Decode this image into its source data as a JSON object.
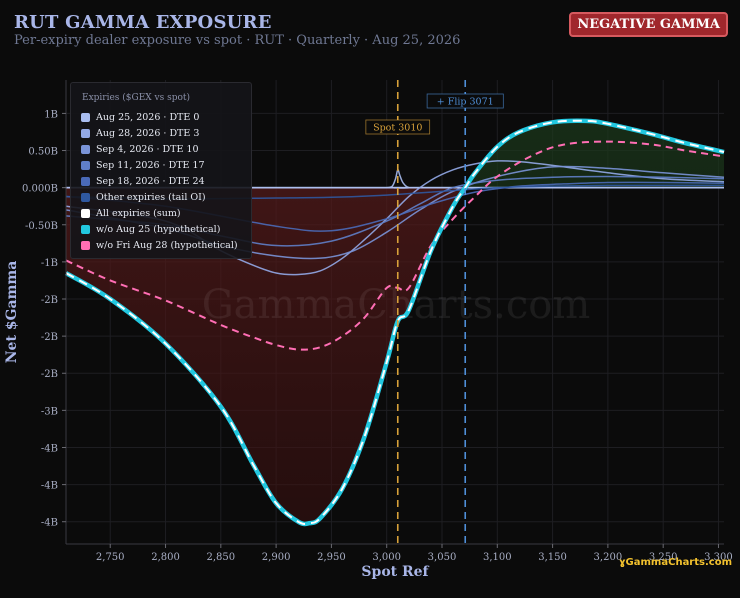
{
  "header": {
    "title": "RUT GAMMA EXPOSURE",
    "subtitle": "Per-expiry dealer exposure vs spot · RUT · Quarterly · Aug 25, 2026",
    "badge": "NEGATIVE GAMMA",
    "brand": "ɣGammaCharts.com"
  },
  "watermark": "GammaCharts.com",
  "chart_data": {
    "type": "line",
    "xlabel": "Spot Ref",
    "ylabel": "Net $Gamma",
    "xlim": [
      2710,
      3305
    ],
    "ylim": [
      -4.8,
      1.45
    ],
    "x_ticks": [
      2750,
      2800,
      2850,
      2900,
      2950,
      3000,
      3050,
      3100,
      3150,
      3200,
      3250,
      3300
    ],
    "x_tick_labels": [
      "2,750",
      "2,800",
      "2,850",
      "2,900",
      "2,950",
      "3,000",
      "3,050",
      "3,100",
      "3,150",
      "3,200",
      "3,250",
      "3,300"
    ],
    "y_ticks": [
      1,
      0.5,
      0,
      -0.5,
      -1,
      -1.5,
      -2,
      -2.5,
      -3,
      -3.5,
      -4,
      -4.5
    ],
    "y_tick_labels": [
      "1B",
      "0.50B",
      "0.000B",
      "-0.50B",
      "-1B",
      "-2B",
      "-2B",
      "-2B",
      "-3B",
      "-4B",
      "-4B",
      "-4B"
    ],
    "spot": {
      "x": 3010,
      "label": "Spot 3010",
      "color": "#d8a13a"
    },
    "flip": {
      "x": 3071,
      "label": "+ Flip 3071",
      "color": "#4f8fd8"
    },
    "legend": {
      "title": "Expiries ($GEX vs spot)",
      "items": [
        {
          "label": "Aug 25, 2026 · DTE 0",
          "color": "#a9bdf0"
        },
        {
          "label": "Aug 28, 2026 · DTE 3",
          "color": "#94aae8"
        },
        {
          "label": "Sep 4, 2026 · DTE 10",
          "color": "#7a94d8"
        },
        {
          "label": "Sep 11, 2026 · DTE 17",
          "color": "#5f7ec8"
        },
        {
          "label": "Sep 18, 2026 · DTE 24",
          "color": "#4a6ab8"
        },
        {
          "label": "Other expiries (tail OI)",
          "color": "#2f58a0"
        },
        {
          "label": "All expiries (sum)",
          "color": "#ffffff"
        },
        {
          "label": "w/o Aug 25 (hypothetical)",
          "color": "#22c8e0"
        },
        {
          "label": "w/o Fri Aug 28 (hypothetical)",
          "color": "#ff6eb4"
        }
      ]
    },
    "series": [
      {
        "name": "Aug 25, 2026 · DTE 0",
        "color": "#a9bdf0",
        "style": "solid",
        "x": [
          2710,
          2990,
          3000,
          3005,
          3008,
          3010,
          3012,
          3015,
          3020,
          3030,
          3305
        ],
        "y": [
          0,
          0,
          0,
          0.02,
          0.12,
          0.24,
          0.16,
          0.06,
          0,
          0,
          0
        ]
      },
      {
        "name": "Aug 28, 2026 · DTE 3",
        "color": "#94aae8",
        "style": "solid",
        "x": [
          2710,
          2800,
          2850,
          2880,
          2900,
          2920,
          2940,
          2960,
          2980,
          3000,
          3020,
          3040,
          3060,
          3080,
          3100,
          3120,
          3150,
          3200,
          3250,
          3305
        ],
        "y": [
          -0.25,
          -0.45,
          -0.85,
          -1.05,
          -1.15,
          -1.17,
          -1.12,
          -0.95,
          -0.7,
          -0.42,
          -0.12,
          0.1,
          0.24,
          0.32,
          0.36,
          0.35,
          0.3,
          0.2,
          0.12,
          0.08
        ]
      },
      {
        "name": "Sep 4, 2026 · DTE 10",
        "color": "#7a94d8",
        "style": "solid",
        "x": [
          2710,
          2800,
          2850,
          2900,
          2940,
          2970,
          3000,
          3030,
          3060,
          3100,
          3150,
          3200,
          3250,
          3305
        ],
        "y": [
          -0.3,
          -0.55,
          -0.78,
          -0.92,
          -0.95,
          -0.85,
          -0.6,
          -0.3,
          -0.05,
          0.15,
          0.28,
          0.26,
          0.2,
          0.14
        ]
      },
      {
        "name": "Sep 11, 2026 · DTE 17",
        "color": "#5f7ec8",
        "style": "solid",
        "x": [
          2710,
          2800,
          2850,
          2900,
          2950,
          3000,
          3030,
          3060,
          3100,
          3150,
          3200,
          3250,
          3305
        ],
        "y": [
          -0.38,
          -0.5,
          -0.65,
          -0.78,
          -0.72,
          -0.45,
          -0.22,
          0,
          0.1,
          0.14,
          0.15,
          0.14,
          0.12
        ]
      },
      {
        "name": "Sep 18, 2026 · DTE 24",
        "color": "#4a6ab8",
        "style": "solid",
        "x": [
          2710,
          2800,
          2900,
          2950,
          3000,
          3040,
          3080,
          3120,
          3160,
          3200,
          3250,
          3305
        ],
        "y": [
          -0.12,
          -0.25,
          -0.52,
          -0.58,
          -0.42,
          -0.22,
          -0.06,
          0.02,
          0.05,
          0.07,
          0.07,
          0.06
        ]
      },
      {
        "name": "Other expiries (tail OI)",
        "color": "#2f58a0",
        "style": "solid",
        "x": [
          2710,
          2800,
          2900,
          2950,
          3000,
          3050,
          3100,
          3150,
          3200,
          3250,
          3305
        ],
        "y": [
          -0.12,
          -0.15,
          -0.14,
          -0.13,
          -0.1,
          -0.05,
          0,
          0.02,
          0.03,
          0.03,
          0.03
        ]
      },
      {
        "name": "w/o Fri Aug 28 (hypothetical)",
        "color": "#ff6eb4",
        "style": "dash",
        "x": [
          2710,
          2750,
          2800,
          2850,
          2880,
          2900,
          2920,
          2940,
          2960,
          2980,
          3000,
          3010,
          3020,
          3040,
          3060,
          3080,
          3100,
          3130,
          3160,
          3200,
          3240,
          3270,
          3305
        ],
        "y": [
          -0.98,
          -1.25,
          -1.52,
          -1.85,
          -2.02,
          -2.12,
          -2.18,
          -2.15,
          -2.0,
          -1.75,
          -1.35,
          -1.35,
          -1.35,
          -0.78,
          -0.42,
          -0.12,
          0.15,
          0.42,
          0.58,
          0.62,
          0.58,
          0.5,
          0.42
        ]
      },
      {
        "name": "w/o Aug 25 (hypothetical)",
        "color": "#22c8e0",
        "style": "solid-wide",
        "x": [
          2710,
          2750,
          2800,
          2850,
          2880,
          2900,
          2920,
          2930,
          2940,
          2960,
          2980,
          3000,
          3010,
          3020,
          3040,
          3060,
          3071,
          3080,
          3100,
          3120,
          3150,
          3180,
          3200,
          3240,
          3270,
          3305
        ],
        "y": [
          -1.15,
          -1.5,
          -2.1,
          -2.95,
          -3.75,
          -4.25,
          -4.5,
          -4.52,
          -4.45,
          -4.05,
          -3.35,
          -2.35,
          -1.8,
          -1.65,
          -0.85,
          -0.25,
          0,
          0.2,
          0.55,
          0.75,
          0.88,
          0.9,
          0.86,
          0.72,
          0.6,
          0.48
        ]
      },
      {
        "name": "All expiries (sum)",
        "color": "#ffffff",
        "style": "dash-white",
        "x": [
          2710,
          2750,
          2800,
          2850,
          2880,
          2900,
          2920,
          2930,
          2940,
          2960,
          2980,
          3000,
          3010,
          3020,
          3040,
          3060,
          3071,
          3080,
          3100,
          3120,
          3150,
          3180,
          3200,
          3240,
          3270,
          3305
        ],
        "y": [
          -1.15,
          -1.5,
          -2.1,
          -2.95,
          -3.75,
          -4.25,
          -4.5,
          -4.52,
          -4.45,
          -4.05,
          -3.35,
          -2.35,
          -1.8,
          -1.65,
          -0.85,
          -0.25,
          0,
          0.2,
          0.55,
          0.75,
          0.88,
          0.9,
          0.86,
          0.72,
          0.6,
          0.48
        ]
      }
    ]
  }
}
